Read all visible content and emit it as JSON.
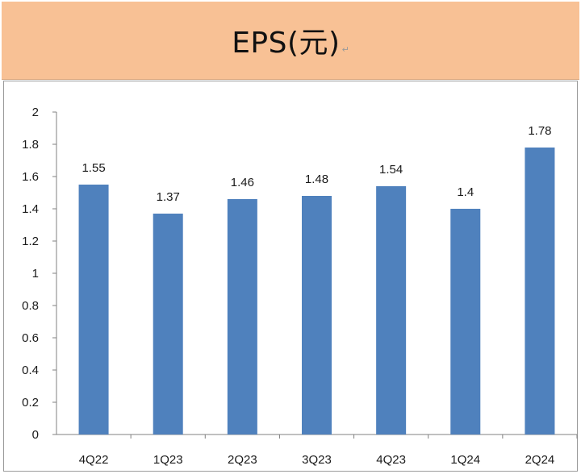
{
  "header": {
    "title": "EPS(元)",
    "return_mark": "↵"
  },
  "chart_data": {
    "type": "bar",
    "title": "EPS(元)",
    "categories": [
      "4Q22",
      "1Q23",
      "2Q23",
      "3Q23",
      "4Q23",
      "1Q24",
      "2Q24"
    ],
    "values": [
      1.55,
      1.37,
      1.46,
      1.48,
      1.54,
      1.4,
      1.78
    ],
    "value_labels": [
      "1.55",
      "1.37",
      "1.46",
      "1.48",
      "1.54",
      "1.4",
      "1.78"
    ],
    "y_ticks": [
      "0",
      "0.2",
      "0.4",
      "0.6",
      "0.8",
      "1",
      "1.2",
      "1.4",
      "1.6",
      "1.8",
      "2"
    ],
    "ylim": [
      0,
      2
    ],
    "xlabel": "",
    "ylabel": "",
    "bar_color": "#4f81bd",
    "grid": false,
    "legend": "none"
  }
}
